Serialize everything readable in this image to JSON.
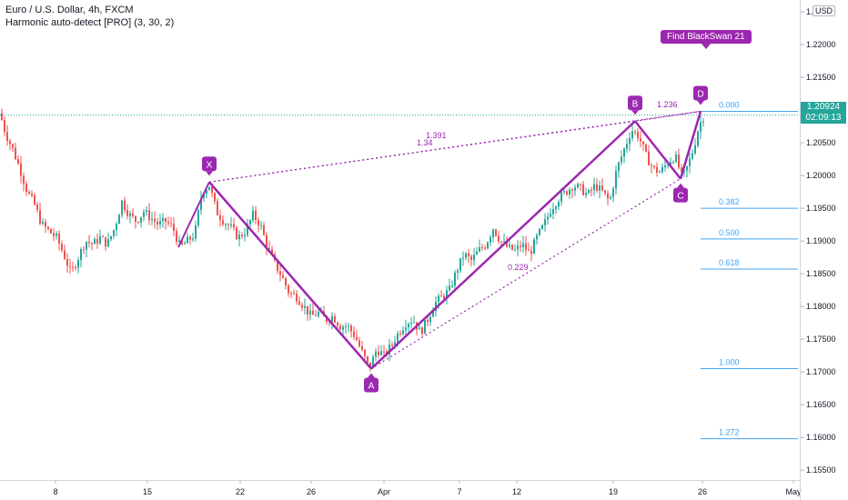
{
  "legend": {
    "title": "Euro / U.S. Dollar, 4h, FXCM",
    "indicator": "Harmonic auto-detect [PRO] (3, 30, 2)"
  },
  "price_scale": {
    "currency": "USD",
    "last_price": "1.20924",
    "countdown": "02:09:13",
    "ticks": [
      "1.22500",
      "1.22000",
      "1.21500",
      "1.21000",
      "1.20500",
      "1.20000",
      "1.19500",
      "1.19000",
      "1.18500",
      "1.18000",
      "1.17500",
      "1.17000",
      "1.16500",
      "1.16000",
      "1.15500"
    ]
  },
  "time_scale": {
    "ticks": [
      "8",
      "15",
      "22",
      "26",
      "Apr",
      "7",
      "12",
      "19",
      "26",
      "May"
    ]
  },
  "callout": "Find BlackSwan 21",
  "colors": {
    "up": "#26a69a",
    "down": "#ef5350",
    "pattern": "#9c27b0",
    "fib": "#42a5f5",
    "last_price_line": "#26a69a"
  },
  "chart_data": {
    "type": "candlestick",
    "symbol": "EURUSD",
    "timeframe": "4h",
    "ylim": [
      1.1535,
      1.2268
    ],
    "grid": false,
    "x_tick_labels": [
      "8",
      "15",
      "22",
      "26",
      "Apr",
      "7",
      "12",
      "19",
      "26",
      "May"
    ],
    "y_tick_labels": [
      "1.22500",
      "1.22000",
      "1.21500",
      "1.21000",
      "1.20500",
      "1.20000",
      "1.19500",
      "1.19000",
      "1.18500",
      "1.18000",
      "1.17500",
      "1.17000",
      "1.16500",
      "1.16000",
      "1.15500"
    ],
    "close_path": [
      [
        0,
        1.2095
      ],
      [
        6,
        1.2065
      ],
      [
        14,
        1.204
      ],
      [
        22,
        1.201
      ],
      [
        30,
        1.1975
      ],
      [
        38,
        1.1955
      ],
      [
        46,
        1.1925
      ],
      [
        54,
        1.1915
      ],
      [
        62,
        1.1905
      ],
      [
        70,
        1.188
      ],
      [
        78,
        1.185
      ],
      [
        86,
        1.1875
      ],
      [
        94,
        1.19
      ],
      [
        102,
        1.1895
      ],
      [
        110,
        1.1905
      ],
      [
        118,
        1.1895
      ],
      [
        126,
        1.192
      ],
      [
        134,
        1.196
      ],
      [
        142,
        1.194
      ],
      [
        150,
        1.193
      ],
      [
        158,
        1.1945
      ],
      [
        166,
        1.1935
      ],
      [
        174,
        1.1925
      ],
      [
        182,
        1.193
      ],
      [
        190,
        1.192
      ],
      [
        198,
        1.189
      ],
      [
        206,
        1.19
      ],
      [
        214,
        1.191
      ],
      [
        222,
        1.1975
      ],
      [
        230,
        1.1985
      ],
      [
        238,
        1.1945
      ],
      [
        246,
        1.193
      ],
      [
        254,
        1.192
      ],
      [
        262,
        1.1905
      ],
      [
        270,
        1.1915
      ],
      [
        278,
        1.194
      ],
      [
        286,
        1.1925
      ],
      [
        294,
        1.189
      ],
      [
        302,
        1.1865
      ],
      [
        310,
        1.1845
      ],
      [
        318,
        1.182
      ],
      [
        326,
        1.1815
      ],
      [
        334,
        1.18
      ],
      [
        342,
        1.1785
      ],
      [
        350,
        1.179
      ],
      [
        358,
        1.178
      ],
      [
        366,
        1.1785
      ],
      [
        374,
        1.177
      ],
      [
        382,
        1.177
      ],
      [
        390,
        1.1755
      ],
      [
        398,
        1.173
      ],
      [
        406,
        1.1705
      ],
      [
        414,
        1.1735
      ],
      [
        422,
        1.1725
      ],
      [
        430,
        1.174
      ],
      [
        438,
        1.176
      ],
      [
        446,
        1.1775
      ],
      [
        454,
        1.178
      ],
      [
        462,
        1.176
      ],
      [
        470,
        1.178
      ],
      [
        478,
        1.1805
      ],
      [
        486,
        1.1815
      ],
      [
        494,
        1.1825
      ],
      [
        502,
        1.1855
      ],
      [
        510,
        1.188
      ],
      [
        518,
        1.187
      ],
      [
        526,
        1.1885
      ],
      [
        534,
        1.1895
      ],
      [
        542,
        1.192
      ],
      [
        550,
        1.19
      ],
      [
        558,
        1.189
      ],
      [
        566,
        1.1885
      ],
      [
        574,
        1.1895
      ],
      [
        582,
        1.188
      ],
      [
        590,
        1.1905
      ],
      [
        598,
        1.1925
      ],
      [
        606,
        1.195
      ],
      [
        614,
        1.1965
      ],
      [
        622,
        1.1975
      ],
      [
        630,
        1.1985
      ],
      [
        638,
        1.198
      ],
      [
        646,
        1.197
      ],
      [
        654,
        1.1985
      ],
      [
        662,
        1.1975
      ],
      [
        670,
        1.196
      ],
      [
        678,
        1.201
      ],
      [
        686,
        1.204
      ],
      [
        694,
        1.207
      ],
      [
        702,
        1.206
      ],
      [
        710,
        1.203
      ],
      [
        718,
        1.201
      ],
      [
        726,
        1.2005
      ],
      [
        734,
        1.202
      ],
      [
        742,
        1.203
      ],
      [
        750,
        1.1995
      ],
      [
        756,
        1.2015
      ],
      [
        762,
        1.204
      ],
      [
        768,
        1.2075
      ],
      [
        774,
        1.2092
      ]
    ],
    "harmonic_pattern": {
      "points": [
        {
          "label": "X",
          "x": 230,
          "price": 1.199
        },
        {
          "label": "A",
          "x": 408,
          "price": 1.1705
        },
        {
          "label": "B",
          "x": 698,
          "price": 1.2083
        },
        {
          "label": "C",
          "x": 748,
          "price": 1.1995
        },
        {
          "label": "D",
          "x": 770,
          "price": 1.2098
        }
      ],
      "ratios": [
        {
          "text": "1.391"
        },
        {
          "text": "1.34"
        },
        {
          "text": "1.236"
        },
        {
          "text": "0.229"
        }
      ]
    },
    "fib_levels": [
      {
        "label": "0.000",
        "price": 1.2098
      },
      {
        "label": "0.382",
        "price": 1.195
      },
      {
        "label": "0.500",
        "price": 1.1903
      },
      {
        "label": "0.618",
        "price": 1.1857
      },
      {
        "label": "1.000",
        "price": 1.1705
      },
      {
        "label": "1.272",
        "price": 1.1598
      }
    ],
    "last_price": 1.20924
  }
}
